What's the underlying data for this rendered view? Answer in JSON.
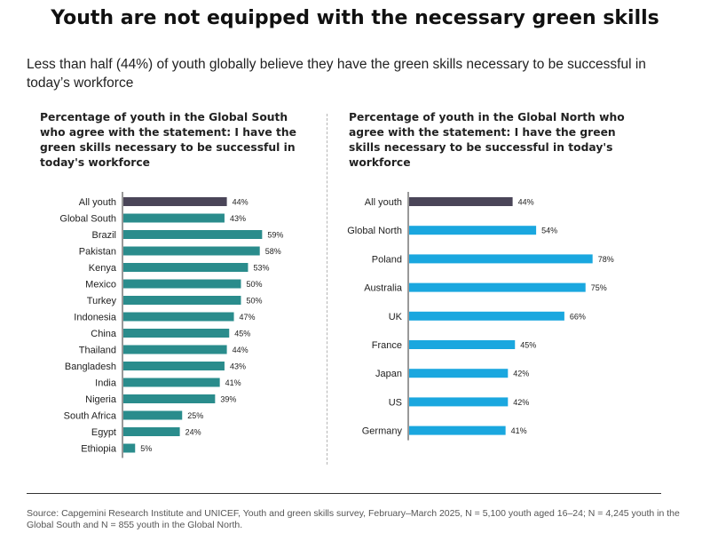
{
  "title": "Youth are not equipped with the necessary green skills",
  "subtitle": "Less than half (44%) of youth globally believe they have the green skills necessary to be successful in today’s workforce",
  "source": "Source: Capgemini Research Institute and UNICEF, Youth and green skills survey, February–March 2025, N = 5,100 youth aged 16–24; N = 4,245 youth in the Global South and N = 855 youth in the Global North.",
  "colors": {
    "highlight": "#4a4558",
    "south": "#2a8c8c",
    "north": "#1aa7df"
  },
  "chart_data": [
    {
      "type": "bar",
      "orientation": "horizontal",
      "title": "Percentage of youth in the Global South who agree with the statement: I have the green skills necessary to be successful in today's workforce",
      "categories": [
        "All youth",
        "Global South",
        "Brazil",
        "Pakistan",
        "Kenya",
        "Mexico",
        "Turkey",
        "Indonesia",
        "China",
        "Thailand",
        "Bangladesh",
        "India",
        "Nigeria",
        "South Africa",
        "Egypt",
        "Ethiopia"
      ],
      "values": [
        44,
        43,
        59,
        58,
        53,
        50,
        50,
        47,
        45,
        44,
        43,
        41,
        39,
        25,
        24,
        5
      ],
      "labels": [
        "44%",
        "43%",
        "59%",
        "58%",
        "53%",
        "50%",
        "50%",
        "47%",
        "45%",
        "44%",
        "43%",
        "41%",
        "39%",
        "25%",
        "24%",
        "5%"
      ],
      "highlight_index": 0,
      "unit": "%",
      "xlim": [
        0,
        100
      ],
      "grid": false
    },
    {
      "type": "bar",
      "orientation": "horizontal",
      "title": "Percentage of youth in the Global North who agree with the statement: I have the green skills necessary to be successful in today's workforce",
      "categories": [
        "All youth",
        "Global North",
        "Poland",
        "Australia",
        "UK",
        "France",
        "Japan",
        "US",
        "Germany"
      ],
      "values": [
        44,
        54,
        78,
        75,
        66,
        45,
        42,
        42,
        41
      ],
      "labels": [
        "44%",
        "54%",
        "78%",
        "75%",
        "66%",
        "45%",
        "42%",
        "42%",
        "41%"
      ],
      "highlight_index": 0,
      "unit": "%",
      "xlim": [
        0,
        100
      ],
      "grid": false
    }
  ]
}
